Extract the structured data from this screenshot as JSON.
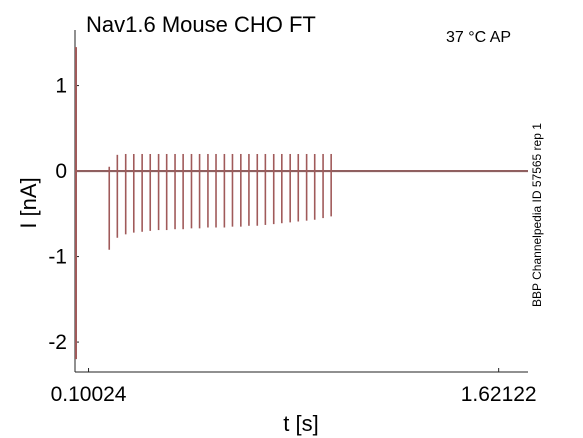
{
  "chart_data": {
    "type": "line",
    "title": "Nav1.6  Mouse  CHO FT",
    "condition": "37 °C  AP",
    "side_label": "BBP Channelpedia ID 57565 rep 1",
    "xlabel": "t [s]",
    "ylabel": "I [nA]",
    "xlim": [
      0.05,
      1.73
    ],
    "ylim": [
      -2.35,
      1.65
    ],
    "x_ticks": [
      0.10024,
      1.62122
    ],
    "x_tick_labels": [
      "0.10024",
      "1.62122"
    ],
    "y_ticks": [
      1,
      0,
      -1,
      -2
    ],
    "y_tick_labels": [
      "1",
      "0",
      "-1",
      "-2"
    ],
    "grid": false,
    "series": [
      {
        "color": "#a05a5a",
        "baseline": 0.0,
        "onset_spike": {
          "t": 0.05,
          "min": -2.2,
          "max": 1.45
        },
        "spikes": {
          "t": [
            0.177,
            0.207,
            0.238,
            0.268,
            0.299,
            0.329,
            0.36,
            0.39,
            0.421,
            0.451,
            0.482,
            0.512,
            0.543,
            0.573,
            0.604,
            0.634,
            0.665,
            0.695,
            0.726,
            0.756,
            0.787,
            0.817,
            0.848,
            0.878,
            0.909,
            0.939,
            0.97,
            1.0
          ],
          "peak": [
            0.05,
            0.19,
            0.2,
            0.2,
            0.2,
            0.2,
            0.2,
            0.2,
            0.2,
            0.2,
            0.2,
            0.2,
            0.2,
            0.2,
            0.2,
            0.2,
            0.2,
            0.2,
            0.2,
            0.2,
            0.2,
            0.2,
            0.2,
            0.2,
            0.2,
            0.2,
            0.2,
            0.2
          ],
          "trough": [
            -0.92,
            -0.78,
            -0.74,
            -0.72,
            -0.71,
            -0.7,
            -0.69,
            -0.69,
            -0.68,
            -0.68,
            -0.67,
            -0.67,
            -0.66,
            -0.66,
            -0.66,
            -0.65,
            -0.65,
            -0.64,
            -0.64,
            -0.63,
            -0.62,
            -0.61,
            -0.6,
            -0.59,
            -0.58,
            -0.57,
            -0.55,
            -0.53
          ]
        }
      }
    ]
  }
}
